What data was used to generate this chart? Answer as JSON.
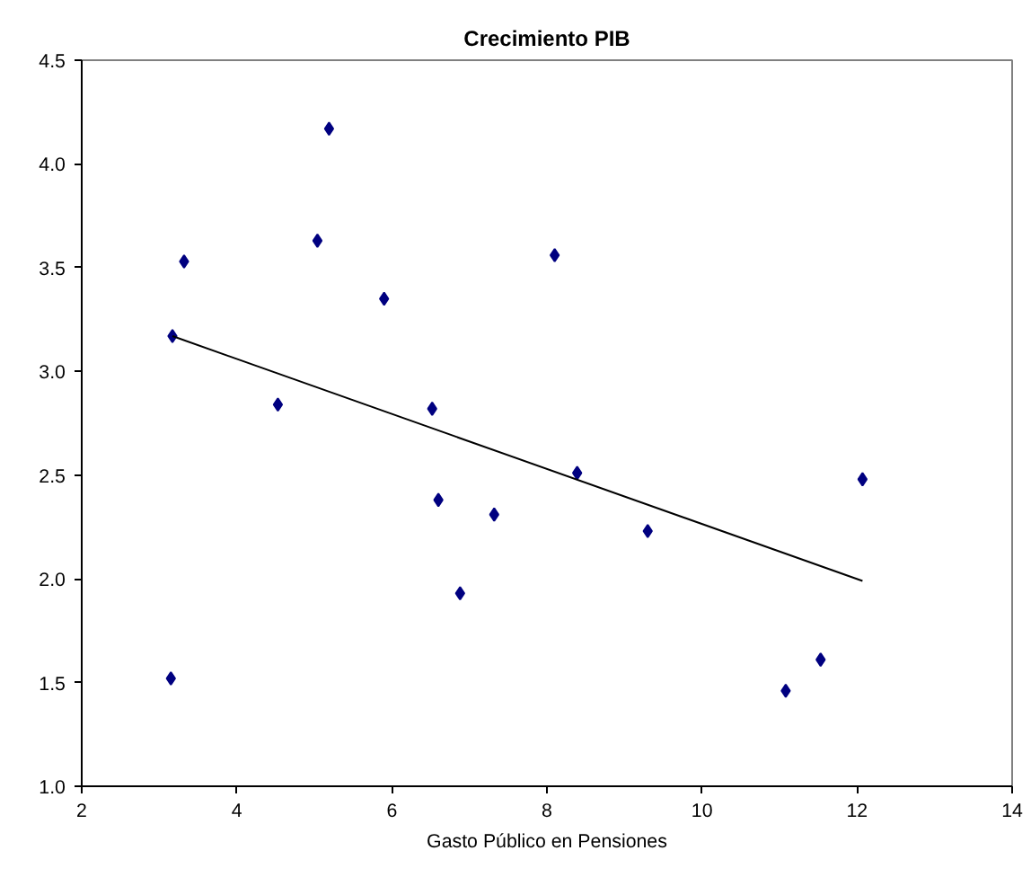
{
  "chart_data": {
    "type": "scatter",
    "title": "Crecimiento PIB",
    "xlabel": "Gasto Público en Pensiones",
    "xlim": [
      2,
      14
    ],
    "xticks": [
      2,
      4,
      6,
      8,
      10,
      12,
      14
    ],
    "ylim": [
      1.0,
      4.5
    ],
    "yticks": [
      {
        "value": 1.0,
        "label": "1.0"
      },
      {
        "value": 1.5,
        "label": "1.5"
      },
      {
        "value": 2.0,
        "label": "2.0"
      },
      {
        "value": 2.5,
        "label": "2.5"
      },
      {
        "value": 3.0,
        "label": "3.0"
      },
      {
        "value": 3.5,
        "label": "3.5"
      },
      {
        "value": 4.0,
        "label": "4.0"
      },
      {
        "value": 4.5,
        "label": "4.5"
      }
    ],
    "grid": false,
    "series": [
      {
        "marker": "diamond",
        "color": "#000080",
        "x": [
          3.17,
          3.32,
          3.15,
          4.53,
          5.04,
          5.19,
          5.9,
          6.52,
          6.6,
          6.88,
          7.32,
          8.1,
          8.39,
          9.3,
          11.08,
          11.53,
          12.07
        ],
        "values": [
          3.17,
          3.53,
          1.52,
          2.84,
          3.63,
          4.17,
          3.35,
          2.82,
          2.38,
          1.93,
          2.31,
          3.56,
          2.51,
          2.23,
          1.46,
          1.61,
          2.48
        ]
      },
      {
        "type": "line",
        "color": "#000000",
        "x": [
          3.17,
          12.07
        ],
        "values": [
          3.17,
          1.99
        ]
      }
    ]
  }
}
